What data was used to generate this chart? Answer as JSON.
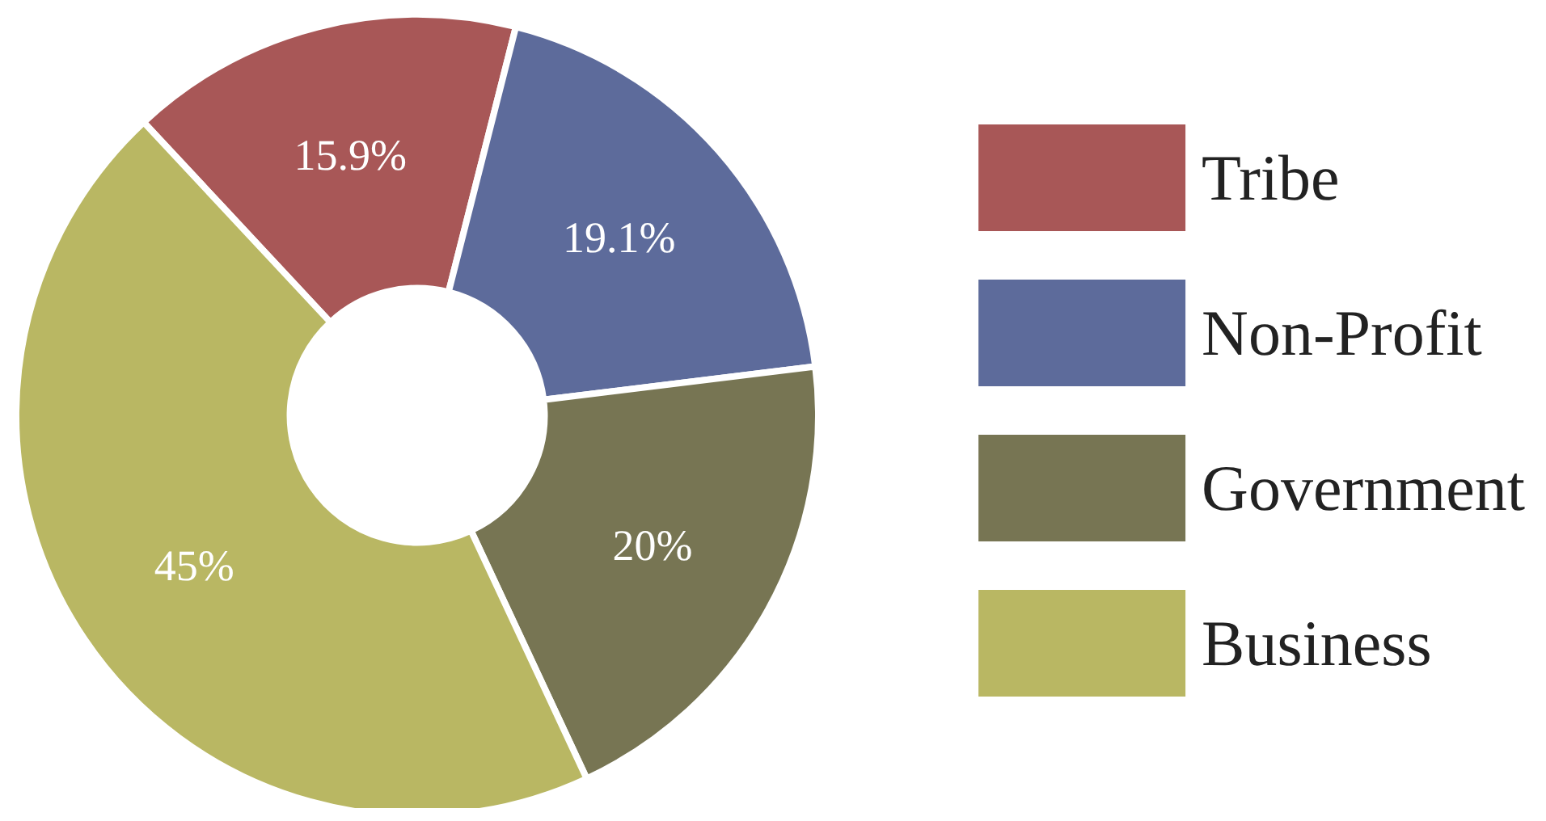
{
  "chart_data": {
    "type": "donut",
    "categories": [
      "Tribe",
      "Non-Profit",
      "Government",
      "Business"
    ],
    "values": [
      15.9,
      19.1,
      20,
      45
    ],
    "colors": [
      "#a85757",
      "#5d6b9b",
      "#777553",
      "#b9b763"
    ],
    "value_labels": [
      "15.9%",
      "19.1%",
      "20%",
      "45%"
    ],
    "legend": "right"
  }
}
